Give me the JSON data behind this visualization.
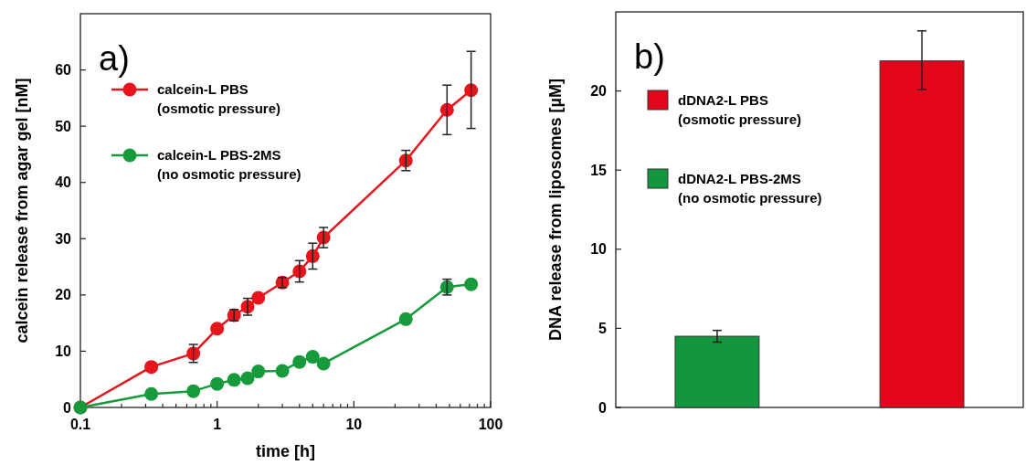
{
  "chart_data": [
    {
      "type": "line",
      "title": "a)",
      "xlabel": "time [h]",
      "ylabel": "calcein release from agar gel [nM]",
      "log": "x",
      "xlim": [
        0.1,
        100
      ],
      "ylim": [
        0,
        70
      ],
      "xticks": [
        0.1,
        {
          "value": 0.2,
          "label": null
        },
        {
          "value": 0.3,
          "label": null
        },
        {
          "value": 0.4,
          "label": null
        },
        {
          "value": 0.5,
          "label": null
        },
        {
          "value": 0.6,
          "label": null
        },
        {
          "value": 0.7,
          "label": null
        },
        {
          "value": 0.8,
          "label": null
        },
        {
          "value": 0.9,
          "label": null
        },
        1,
        {
          "value": 2,
          "label": null
        },
        {
          "value": 3,
          "label": null
        },
        {
          "value": 4,
          "label": null
        },
        {
          "value": 5,
          "label": null
        },
        {
          "value": 6,
          "label": null
        },
        {
          "value": 7,
          "label": null
        },
        {
          "value": 8,
          "label": null
        },
        {
          "value": 9,
          "label": null
        },
        10,
        {
          "value": 20,
          "label": null
        },
        {
          "value": 30,
          "label": null
        },
        {
          "value": 40,
          "label": null
        },
        {
          "value": 50,
          "label": null
        },
        {
          "value": 60,
          "label": null
        },
        {
          "value": 70,
          "label": null
        },
        {
          "value": 80,
          "label": null
        },
        {
          "value": 90,
          "label": null
        },
        100
      ],
      "yticks": [
        0,
        10,
        20,
        30,
        40,
        50,
        60
      ],
      "legend": "top left",
      "marker": "circle",
      "line_style": "solid",
      "x": [
        0.1,
        0.33,
        0.67,
        1,
        1.33,
        1.67,
        2,
        3,
        4,
        5,
        6,
        24,
        48,
        72
      ],
      "series": [
        {
          "name": "calcein-L PBS\n(osmotic pressure)",
          "color": "#e8141c",
          "values": [
            0,
            7.2,
            9.6,
            14.0,
            16.4,
            17.9,
            19.5,
            22.2,
            24.2,
            26.9,
            30.2,
            43.9,
            52.9,
            56.4
          ],
          "errors": [
            null,
            null,
            1.6,
            null,
            1.0,
            1.5,
            null,
            0.9,
            1.9,
            2.3,
            1.8,
            1.8,
            4.4,
            [
              49.6,
              63.3
            ]
          ]
        },
        {
          "name": "calcein-L PBS-2MS\n(no osmotic pressure)",
          "color": "#169a3c",
          "values": [
            0,
            2.4,
            2.9,
            4.2,
            4.9,
            5.2,
            6.4,
            6.5,
            8.1,
            9.0,
            7.8,
            15.7,
            21.4,
            21.9
          ],
          "errors": [
            null,
            null,
            null,
            null,
            null,
            null,
            null,
            null,
            null,
            null,
            null,
            null,
            1.4,
            null
          ]
        }
      ]
    },
    {
      "type": "bar",
      "title": "b)",
      "ylabel": "DNA release from liposomes  [µM]",
      "ylim": [
        0,
        25
      ],
      "yticks": [
        0,
        5,
        10,
        15,
        20
      ],
      "legend": "top left",
      "stacked": true,
      "categories": [
        null,
        null
      ],
      "series": [
        {
          "name": "dDNA2-L PBS\n(osmotic pressure)",
          "color": "#e3061a",
          "values": [
            null,
            21.9
          ],
          "errors": [
            null,
            [
              20.1,
              23.8
            ]
          ]
        },
        {
          "name": "dDNA2-L PBS-2MS\n(no osmotic pressure)",
          "color": "#12963e",
          "values": [
            4.5,
            null
          ],
          "errors": [
            0.37,
            null
          ]
        }
      ]
    }
  ]
}
